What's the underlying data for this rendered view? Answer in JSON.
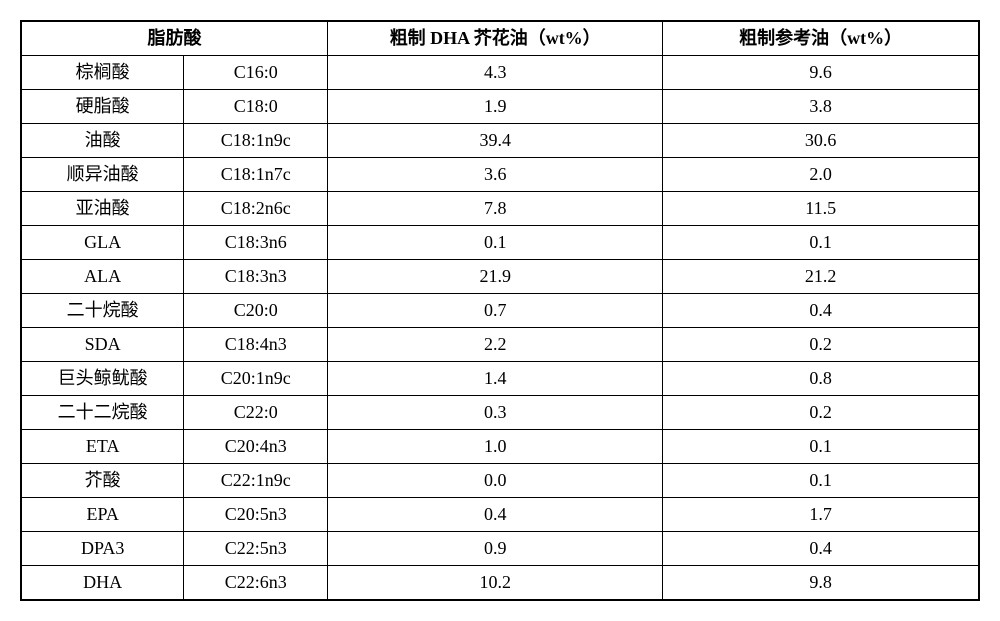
{
  "table": {
    "type": "table",
    "background_color": "#ffffff",
    "border_color": "#000000",
    "font_family": "SimSun",
    "header_fontsize": 18,
    "cell_fontsize": 18,
    "headers": {
      "col1_2": "脂肪酸",
      "col3": "粗制 DHA 芥花油（wt%）",
      "col4": "粗制参考油（wt%）"
    },
    "columns": [
      {
        "key": "name",
        "width_pct": 17,
        "align": "center"
      },
      {
        "key": "code",
        "width_pct": 15,
        "align": "center"
      },
      {
        "key": "dha_oil",
        "width_pct": 35,
        "align": "center"
      },
      {
        "key": "ref_oil",
        "width_pct": 33,
        "align": "center"
      }
    ],
    "rows": [
      {
        "name": "棕榈酸",
        "code": "C16:0",
        "dha_oil": "4.3",
        "ref_oil": "9.6"
      },
      {
        "name": "硬脂酸",
        "code": "C18:0",
        "dha_oil": "1.9",
        "ref_oil": "3.8"
      },
      {
        "name": "油酸",
        "code": "C18:1n9c",
        "dha_oil": "39.4",
        "ref_oil": "30.6"
      },
      {
        "name": "顺异油酸",
        "code": "C18:1n7c",
        "dha_oil": "3.6",
        "ref_oil": "2.0"
      },
      {
        "name": "亚油酸",
        "code": "C18:2n6c",
        "dha_oil": "7.8",
        "ref_oil": "11.5"
      },
      {
        "name": "GLA",
        "code": "C18:3n6",
        "dha_oil": "0.1",
        "ref_oil": "0.1"
      },
      {
        "name": "ALA",
        "code": "C18:3n3",
        "dha_oil": "21.9",
        "ref_oil": "21.2"
      },
      {
        "name": "二十烷酸",
        "code": "C20:0",
        "dha_oil": "0.7",
        "ref_oil": "0.4"
      },
      {
        "name": "SDA",
        "code": "C18:4n3",
        "dha_oil": "2.2",
        "ref_oil": "0.2"
      },
      {
        "name": "巨头鲸鱿酸",
        "code": "C20:1n9c",
        "dha_oil": "1.4",
        "ref_oil": "0.8"
      },
      {
        "name": "二十二烷酸",
        "code": "C22:0",
        "dha_oil": "0.3",
        "ref_oil": "0.2"
      },
      {
        "name": "ETA",
        "code": "C20:4n3",
        "dha_oil": "1.0",
        "ref_oil": "0.1"
      },
      {
        "name": "芥酸",
        "code": "C22:1n9c",
        "dha_oil": "0.0",
        "ref_oil": "0.1"
      },
      {
        "name": "EPA",
        "code": "C20:5n3",
        "dha_oil": "0.4",
        "ref_oil": "1.7"
      },
      {
        "name": "DPA3",
        "code": "C22:5n3",
        "dha_oil": "0.9",
        "ref_oil": "0.4"
      },
      {
        "name": "DHA",
        "code": "C22:6n3",
        "dha_oil": "10.2",
        "ref_oil": "9.8"
      }
    ]
  }
}
